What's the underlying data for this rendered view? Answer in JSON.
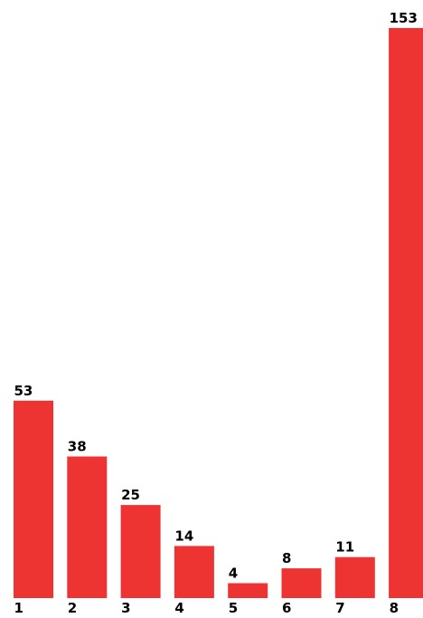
{
  "chart_data": {
    "type": "bar",
    "categories": [
      "1",
      "2",
      "3",
      "4",
      "5",
      "6",
      "7",
      "8"
    ],
    "values": [
      53,
      38,
      25,
      14,
      4,
      8,
      11,
      153
    ],
    "title": "",
    "xlabel": "",
    "ylabel": "",
    "ylim": [
      0,
      153
    ],
    "grid": false,
    "legend": "none",
    "bar_color": "#ee3333",
    "data_labels": true
  }
}
